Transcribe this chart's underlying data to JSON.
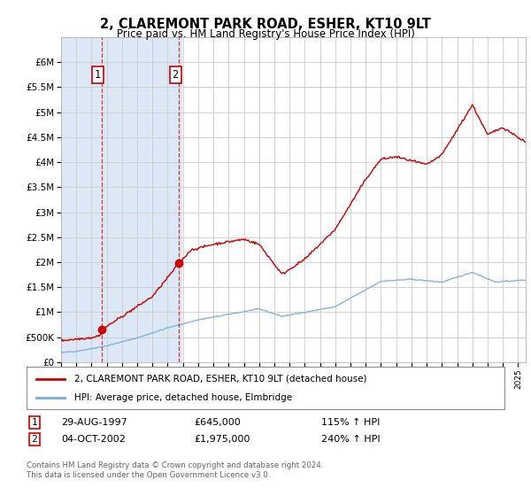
{
  "title": "2, CLAREMONT PARK ROAD, ESHER, KT10 9LT",
  "subtitle": "Price paid vs. HM Land Registry's House Price Index (HPI)",
  "ylim": [
    0,
    6500000
  ],
  "yticks": [
    0,
    500000,
    1000000,
    1500000,
    2000000,
    2500000,
    3000000,
    3500000,
    4000000,
    4500000,
    5000000,
    5500000,
    6000000
  ],
  "ytick_labels": [
    "£0",
    "£500K",
    "£1M",
    "£1.5M",
    "£2M",
    "£2.5M",
    "£3M",
    "£3.5M",
    "£4M",
    "£4.5M",
    "£5M",
    "£5.5M",
    "£6M"
  ],
  "sale1_date": 1997.66,
  "sale1_price": 645000,
  "sale1_label": "1",
  "sale1_date_str": "29-AUG-1997",
  "sale1_price_str": "£645,000",
  "sale1_hpi_str": "115% ↑ HPI",
  "sale2_date": 2002.75,
  "sale2_price": 1975000,
  "sale2_label": "2",
  "sale2_date_str": "04-OCT-2002",
  "sale2_price_str": "£1,975,000",
  "sale2_hpi_str": "240% ↑ HPI",
  "hpi_line_color": "#7aaddc",
  "red_line_color": "#cc0000",
  "dot_color": "#cc0000",
  "shade_color": "#dce8f5",
  "background_color": "#ffffff",
  "grid_color": "#cccccc",
  "legend1_text": "2, CLAREMONT PARK ROAD, ESHER, KT10 9LT (detached house)",
  "legend2_text": "HPI: Average price, detached house, Elmbridge",
  "footnote": "Contains HM Land Registry data © Crown copyright and database right 2024.\nThis data is licensed under the Open Government Licence v3.0.",
  "xmin": 1995,
  "xmax": 2025.5
}
